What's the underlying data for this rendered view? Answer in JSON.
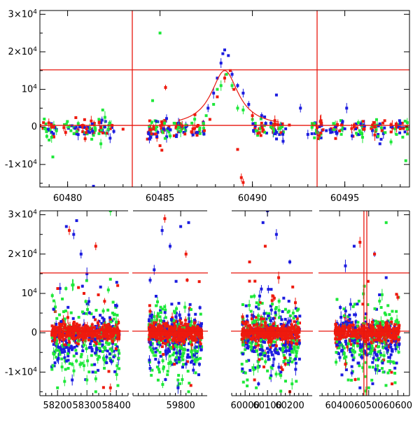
{
  "colors": {
    "red": "#ee1a0e",
    "green": "#1ee83a",
    "blue": "#1c1cdf",
    "ref_line": "#e8170e",
    "axes": "#000000"
  },
  "chart_data": [
    {
      "type": "scatter",
      "title": "",
      "xlabel": "",
      "ylabel": "",
      "xlim": [
        60478.5,
        60498.5
      ],
      "ylim": [
        -16000,
        31000
      ],
      "x_ticks": [
        60480,
        60485,
        60490,
        60495
      ],
      "x_tick_labels": [
        "60480",
        "60485",
        "60490",
        "60495"
      ],
      "y_ticks": [
        -10000,
        0,
        10000,
        20000,
        30000
      ],
      "y_tick_labels": [
        {
          "base": "-1×10",
          "exp": "4"
        },
        {
          "base": "0",
          "exp": ""
        },
        {
          "base": "10",
          "exp": "4"
        },
        {
          "base": "2×10",
          "exp": "4"
        },
        {
          "base": "3×10",
          "exp": "4"
        }
      ],
      "reference_lines": {
        "vertical_x": [
          60483.5,
          60493.5
        ],
        "horizontal_y": [
          15200,
          400
        ]
      },
      "model_curve": {
        "peak_x": 60488.5,
        "peak_y": 15000,
        "width_days": 0.9
      },
      "series": [
        {
          "color": "blue",
          "points": [
            [
              60480.4,
              -400
            ],
            [
              60481.2,
              -1500
            ],
            [
              60482.2,
              -800
            ],
            [
              60482.3,
              -3000
            ],
            [
              60482.5,
              -1200
            ],
            [
              60481.4,
              -15800
            ],
            [
              60484.4,
              -1500
            ],
            [
              60484.5,
              -2800
            ],
            [
              60484.8,
              1500
            ],
            [
              60485.2,
              -600
            ],
            [
              60486.0,
              1000
            ],
            [
              60486.4,
              0
            ],
            [
              60487.6,
              5000
            ],
            [
              60487.9,
              9000
            ],
            [
              60488.1,
              13000
            ],
            [
              60488.3,
              17000
            ],
            [
              60488.4,
              19500
            ],
            [
              60488.5,
              20500
            ],
            [
              60488.7,
              19000
            ],
            [
              60488.9,
              14000
            ],
            [
              60489.2,
              11000
            ],
            [
              60489.5,
              9000
            ],
            [
              60489.8,
              6000
            ],
            [
              60490.5,
              3000
            ],
            [
              60491.0,
              1000
            ],
            [
              60491.3,
              8500
            ],
            [
              60491.8,
              -500
            ],
            [
              60492.6,
              5000
            ],
            [
              60493.0,
              -2000
            ],
            [
              60494.0,
              -1000
            ],
            [
              60494.5,
              0
            ],
            [
              60495.0,
              -500
            ],
            [
              60495.1,
              5000
            ],
            [
              60496.8,
              -2000
            ],
            [
              60496.9,
              -4500
            ],
            [
              60497.5,
              0
            ]
          ]
        },
        {
          "color": "green",
          "points": [
            [
              60478.8,
              -500
            ],
            [
              60479.0,
              -3500
            ],
            [
              60479.2,
              -8000
            ],
            [
              60480.5,
              -1200
            ],
            [
              60481.5,
              -500
            ],
            [
              60481.7,
              -1800
            ],
            [
              60481.8,
              -4500
            ],
            [
              60481.9,
              4500
            ],
            [
              60482.2,
              -600
            ],
            [
              60484.5,
              -1000
            ],
            [
              60484.6,
              7000
            ],
            [
              60485.0,
              25000
            ],
            [
              60486.0,
              -100
            ],
            [
              60486.4,
              500
            ],
            [
              60487.5,
              3000
            ],
            [
              60487.9,
              6000
            ],
            [
              60488.1,
              10000
            ],
            [
              60488.3,
              11000
            ],
            [
              60488.6,
              14000
            ],
            [
              60488.9,
              11000
            ],
            [
              60489.2,
              5000
            ],
            [
              60489.5,
              4500
            ],
            [
              60490.0,
              2000
            ],
            [
              60490.2,
              -1000
            ],
            [
              60491.0,
              0
            ],
            [
              60493.5,
              -1500
            ],
            [
              60495.8,
              -1000
            ],
            [
              60496.8,
              -2500
            ],
            [
              60497.5,
              -4000
            ],
            [
              60497.8,
              -2000
            ],
            [
              60498.3,
              -9000
            ]
          ]
        },
        {
          "color": "red",
          "points": [
            [
              60478.5,
              400
            ],
            [
              60479.8,
              -200
            ],
            [
              60480.8,
              400
            ],
            [
              60481.0,
              -1500
            ],
            [
              60481.8,
              -200
            ],
            [
              60483.0,
              -600
            ],
            [
              60484.5,
              -800
            ],
            [
              60485.0,
              -5000
            ],
            [
              60485.1,
              -6200
            ],
            [
              60485.3,
              10500
            ],
            [
              60486.2,
              300
            ],
            [
              60487.0,
              100
            ],
            [
              60487.4,
              -1000
            ],
            [
              60487.7,
              2000
            ],
            [
              60488.1,
              8000
            ],
            [
              60488.5,
              13000
            ],
            [
              60488.8,
              15000
            ],
            [
              60489.0,
              10000
            ],
            [
              60489.2,
              -6000
            ],
            [
              60489.4,
              -13500
            ],
            [
              60489.5,
              -14800
            ],
            [
              60490.0,
              3000
            ],
            [
              60490.5,
              1000
            ],
            [
              60491.2,
              500
            ],
            [
              60492.0,
              500
            ],
            [
              60493.5,
              -200
            ],
            [
              60495.5,
              0
            ],
            [
              60496.5,
              500
            ],
            [
              60497.5,
              600
            ],
            [
              60498.0,
              -500
            ]
          ]
        }
      ]
    },
    {
      "type": "scatter",
      "title": "",
      "xlabel": "",
      "ylabel": "",
      "x_segments": [
        [
          58140,
          58440
        ],
        [
          59620,
          59900
        ],
        [
          59940,
          60300
        ],
        [
          60330,
          60640
        ]
      ],
      "ylim": [
        -16000,
        31000
      ],
      "x_ticks": [
        58200,
        58300,
        58400,
        59800,
        60000,
        60100,
        60200,
        60400,
        60500,
        60600
      ],
      "x_tick_labels": [
        "58200",
        "58300",
        "58400",
        "59800",
        "60000",
        "60100",
        "60200",
        "60400",
        "60500",
        "60600"
      ],
      "y_ticks": [
        -10000,
        0,
        10000,
        20000,
        30000
      ],
      "y_tick_labels": [
        {
          "base": "-1×10",
          "exp": "4"
        },
        {
          "base": "0",
          "exp": ""
        },
        {
          "base": "10",
          "exp": "4"
        },
        {
          "base": "2×10",
          "exp": "4"
        },
        {
          "base": "3×10",
          "exp": "4"
        }
      ],
      "reference_lines": {
        "vertical_x": [
          60483.5,
          60493.5
        ],
        "horizontal_y": [
          15200,
          400
        ]
      },
      "observing_seasons": [
        [
          58180,
          58410
        ],
        [
          59680,
          59880
        ],
        [
          59985,
          60245
        ],
        [
          60385,
          60605
        ]
      ],
      "series": [
        {
          "color": "blue",
          "points": [
            [
              58230,
              27000
            ],
            [
              58255,
              25000
            ],
            [
              58265,
              28500
            ],
            [
              58300,
              15000
            ],
            [
              58280,
              20000
            ],
            [
              58250,
              -12000
            ],
            [
              58320,
              -10000
            ],
            [
              59700,
              16000
            ],
            [
              59730,
              26000
            ],
            [
              59760,
              22000
            ],
            [
              59800,
              27000
            ],
            [
              59830,
              28000
            ],
            [
              59790,
              -14000
            ],
            [
              59850,
              -8000
            ],
            [
              60080,
              28000
            ],
            [
              60100,
              31000
            ],
            [
              60140,
              25000
            ],
            [
              60200,
              18000
            ],
            [
              60060,
              -13000
            ],
            [
              60160,
              -10000
            ],
            [
              60420,
              17000
            ],
            [
              60450,
              22000
            ],
            [
              60520,
              20000
            ],
            [
              60560,
              14000
            ],
            [
              60470,
              -14000
            ],
            [
              60590,
              -9000
            ]
          ]
        },
        {
          "color": "green",
          "points": [
            [
              58200,
              -14000
            ],
            [
              58250,
              -8000
            ],
            [
              58300,
              -12000
            ],
            [
              58330,
              -15000
            ],
            [
              58380,
              31000
            ],
            [
              58340,
              -6000
            ],
            [
              59720,
              -10000
            ],
            [
              59790,
              -12000
            ],
            [
              59830,
              -15000
            ],
            [
              60010,
              -12000
            ],
            [
              60050,
              -14000
            ],
            [
              60120,
              -9000
            ],
            [
              60210,
              -13000
            ],
            [
              60430,
              -12000
            ],
            [
              60500,
              -14000
            ],
            [
              60550,
              -10000
            ],
            [
              60560,
              28000
            ]
          ]
        },
        {
          "color": "red",
          "points": [
            [
              58240,
              26000
            ],
            [
              58330,
              22000
            ],
            [
              58360,
              8000
            ],
            [
              58290,
              10000
            ],
            [
              58380,
              -14000
            ],
            [
              59740,
              29000
            ],
            [
              59820,
              20000
            ],
            [
              59870,
              13000
            ],
            [
              60020,
              18000
            ],
            [
              60090,
              22000
            ],
            [
              60150,
              14000
            ],
            [
              60180,
              -8000
            ],
            [
              60200,
              -15000
            ],
            [
              60420,
              -8000
            ],
            [
              60470,
              23000
            ],
            [
              60520,
              20000
            ],
            [
              60580,
              -13000
            ],
            [
              60600,
              9000
            ]
          ]
        }
      ]
    }
  ]
}
